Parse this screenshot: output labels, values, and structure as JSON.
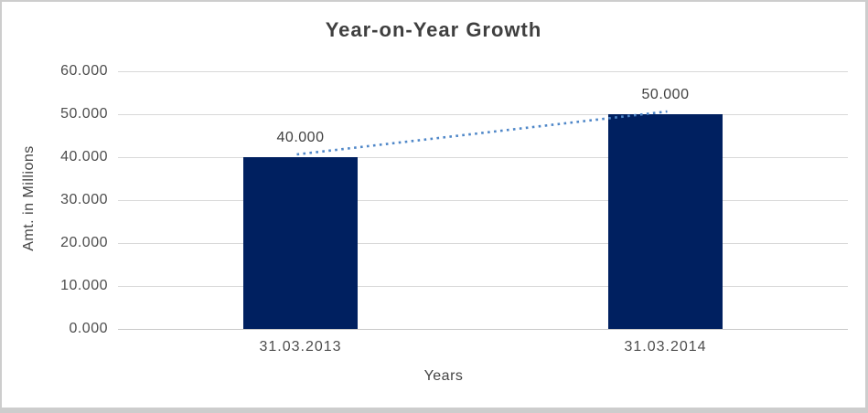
{
  "window": {
    "background": "#ffffff",
    "frame_border_color": "#cdcdcd"
  },
  "chart_data": {
    "type": "bar",
    "title": "Year-on-Year Growth",
    "xlabel": "Years",
    "ylabel": "Amt. in Millions",
    "categories": [
      "31.03.2013",
      "31.03.2014"
    ],
    "values": [
      40.0,
      50.0
    ],
    "data_labels": [
      "40.000",
      "50.000"
    ],
    "ylim": [
      0,
      60
    ],
    "ytick_step": 10,
    "ytick_labels": [
      "0.000",
      "10.000",
      "20.000",
      "30.000",
      "40.000",
      "50.000",
      "60.000"
    ],
    "grid": "horizontal",
    "legend": "none",
    "bar_color": "#002060",
    "gridline_color": "#d9d9d9",
    "axis_line_color": "#c9c9c9",
    "tick_text_color": "#4d4d4d",
    "title_color": "#3f3f3f",
    "trendline": {
      "type": "linear",
      "style": "dotted",
      "color": "#4f87c8"
    }
  }
}
